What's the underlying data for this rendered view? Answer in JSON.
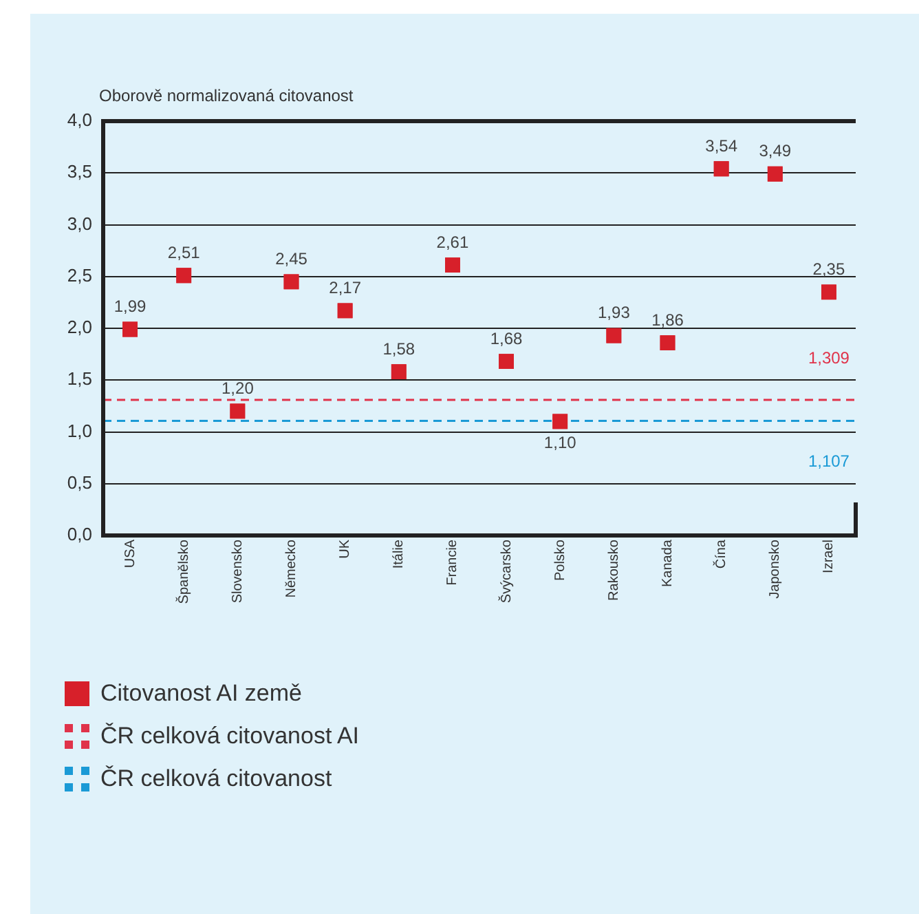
{
  "chart_data": {
    "type": "scatter",
    "ylabel": "Oborově normalizovaná citovanost",
    "categories": [
      "USA",
      "Španělsko",
      "Slovensko",
      "Německo",
      "UK",
      "Itálie",
      "Francie",
      "Švýcarsko",
      "Polsko",
      "Rakousko",
      "Kanada",
      "Čína",
      "Japonsko",
      "Izrael"
    ],
    "series": [
      {
        "name": "Citovanost AI země",
        "color": "#d7202a",
        "values": [
          1.99,
          2.51,
          1.2,
          2.45,
          2.17,
          1.58,
          2.61,
          1.68,
          1.1,
          1.93,
          1.86,
          3.54,
          3.49,
          2.35
        ],
        "value_labels": [
          "1,99",
          "2,51",
          "1,20",
          "2,45",
          "2,17",
          "1,58",
          "2,61",
          "1,68",
          "1,10",
          "1,93",
          "1,86",
          "3,54",
          "3,49",
          "2,35"
        ]
      }
    ],
    "ylim": [
      0,
      4
    ],
    "yticks": [
      {
        "value": 0,
        "label": "0,0"
      },
      {
        "value": 0.5,
        "label": "0,5"
      },
      {
        "value": 1,
        "label": "1,0"
      },
      {
        "value": 1.5,
        "label": "1,5"
      },
      {
        "value": 2,
        "label": "2,0"
      },
      {
        "value": 2.5,
        "label": "2,5"
      },
      {
        "value": 3,
        "label": "3,0"
      },
      {
        "value": 3.5,
        "label": "3,5"
      },
      {
        "value": 4,
        "label": "4,0"
      }
    ],
    "grid": "y",
    "legend": "bottom",
    "marker": "square",
    "ref_lines": [
      {
        "axis": "y",
        "value": 1.309,
        "label": "ČR celková citovanost AI",
        "color": "#e0334a",
        "line_style": "dashed"
      },
      {
        "axis": "y",
        "value": 1.107,
        "label": "ČR celková citovanost",
        "color": "#1a9ad6",
        "line_style": "dashed"
      }
    ],
    "annotations": [
      {
        "text": "1,309",
        "x": "Izrael",
        "y": 1.309
      },
      {
        "text": "1,107",
        "x": "Izrael",
        "y": 1.107
      }
    ]
  }
}
